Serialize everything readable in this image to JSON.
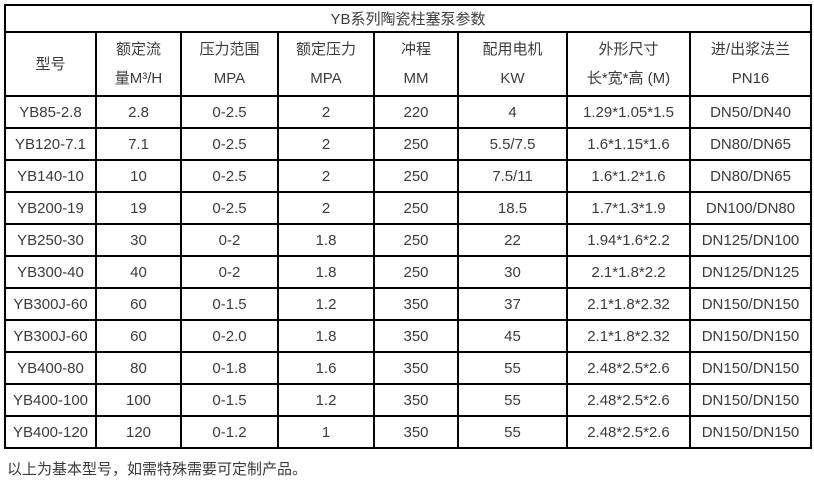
{
  "colors": {
    "text": "#3b3b3b",
    "border": "#000000",
    "background": "#ffffff"
  },
  "table": {
    "title": "YB系列陶瓷柱塞泵参数",
    "columns": [
      {
        "line1": "型号",
        "line2": ""
      },
      {
        "line1": "额定流",
        "line2": "量M³/H"
      },
      {
        "line1": "压力范围",
        "line2": "MPA"
      },
      {
        "line1": "额定压力",
        "line2": "MPA"
      },
      {
        "line1": "冲程",
        "line2": "MM"
      },
      {
        "line1": "配用电机",
        "line2": "KW"
      },
      {
        "line1": "外形尺寸",
        "line2": "长*宽*高 (M)"
      },
      {
        "line1": "进/出浆法兰",
        "line2": "PN16"
      }
    ],
    "rows": [
      [
        "YB85-2.8",
        "2.8",
        "0-2.5",
        "2",
        "220",
        "4",
        "1.29*1.05*1.5",
        "DN50/DN40"
      ],
      [
        "YB120-7.1",
        "7.1",
        "0-2.5",
        "2",
        "250",
        "5.5/7.5",
        "1.6*1.15*1.6",
        "DN80/DN65"
      ],
      [
        "YB140-10",
        "10",
        "0-2.5",
        "2",
        "250",
        "7.5/11",
        "1.6*1.2*1.6",
        "DN80/DN65"
      ],
      [
        "YB200-19",
        "19",
        "0-2.5",
        "2",
        "250",
        "18.5",
        "1.7*1.3*1.9",
        "DN100/DN80"
      ],
      [
        "YB250-30",
        "30",
        "0-2",
        "1.8",
        "250",
        "22",
        "1.94*1.6*2.2",
        "DN125/DN100"
      ],
      [
        "YB300-40",
        "40",
        "0-2",
        "1.8",
        "250",
        "30",
        "2.1*1.8*2.2",
        "DN125/DN125"
      ],
      [
        "YB300J-60",
        "60",
        "0-1.5",
        "1.2",
        "350",
        "37",
        "2.1*1.8*2.32",
        "DN150/DN150"
      ],
      [
        "YB300J-60",
        "60",
        "0-2.0",
        "1.8",
        "350",
        "45",
        "2.1*1.8*2.32",
        "DN150/DN150"
      ],
      [
        "YB400-80",
        "80",
        "0-1.8",
        "1.6",
        "350",
        "55",
        "2.48*2.5*2.6",
        "DN150/DN150"
      ],
      [
        "YB400-100",
        "100",
        "0-1.5",
        "1.2",
        "350",
        "55",
        "2.48*2.5*2.6",
        "DN150/DN150"
      ],
      [
        "YB400-120",
        "120",
        "0-1.2",
        "1",
        "350",
        "55",
        "2.48*2.5*2.6",
        "DN150/DN150"
      ]
    ]
  },
  "footer": {
    "note": "以上为基本型号，如需特殊需要可定制产品。"
  }
}
